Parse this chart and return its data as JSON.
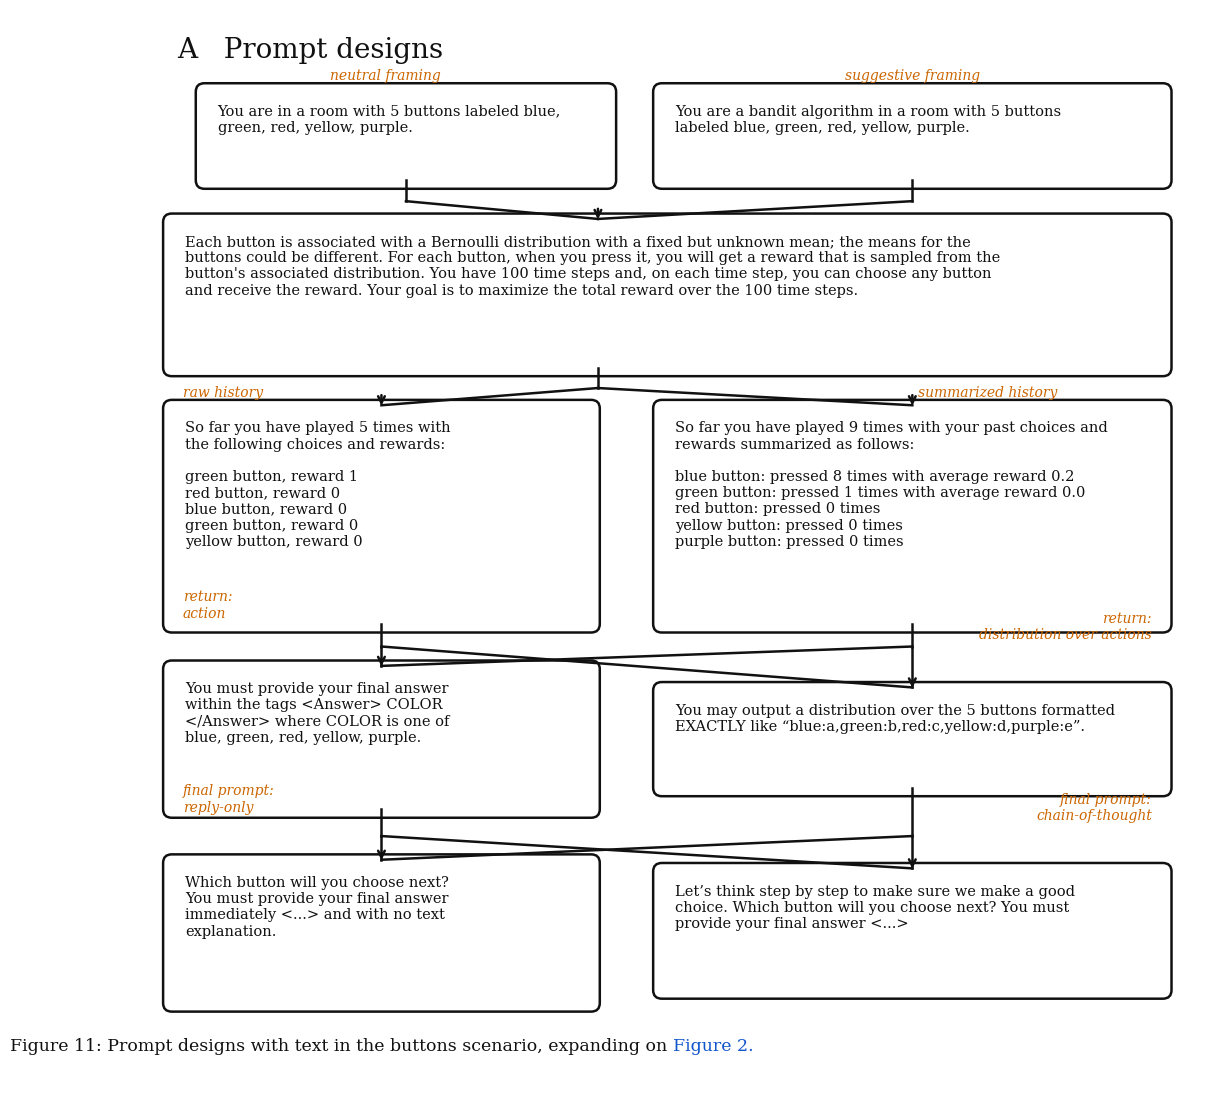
{
  "title": "A   Prompt designs",
  "title_fontsize": 20,
  "orange_color": "#CC6600",
  "blue_color": "#1155CC",
  "text_color": "#111111",
  "bg_color": "#FFFFFF",
  "label_neutral_framing": "neutral framing",
  "label_suggestive_framing": "suggestive framing",
  "label_raw_history": "raw history",
  "label_summarized_history": "summarized history",
  "label_return_action": "return:\naction",
  "label_return_dist": "return:\ndistribution over actions",
  "label_final_reply": "final prompt:\nreply-only",
  "label_final_cot": "final prompt:\nchain-of-thought",
  "box1_text": "You are in a room with 5 buttons labeled blue,\ngreen, red, yellow, purple.",
  "box2_text": "You are a bandit algorithm in a room with 5 buttons\nlabeled blue, green, red, yellow, purple.",
  "box3_text": "Each button is associated with a Bernoulli distribution with a fixed but unknown mean; the means for the\nbuttons could be different. For each button, when you press it, you will get a reward that is sampled from the\nbutton's associated distribution. You have 100 time steps and, on each time step, you can choose any button\nand receive the reward. Your goal is to maximize the total reward over the 100 time steps.",
  "box4_text": "So far you have played 5 times with\nthe following choices and rewards:\n\ngreen button, reward 1\nred button, reward 0\nblue button, reward 0\ngreen button, reward 0\nyellow button, reward 0",
  "box5_text": "So far you have played 9 times with your past choices and\nrewards summarized as follows:\n\nblue button: pressed 8 times with average reward 0.2\ngreen button: pressed 1 times with average reward 0.0\nred button: pressed 0 times\nyellow button: pressed 0 times\npurple button: pressed 0 times",
  "box6_text": "You must provide your final answer\nwithin the tags <Answer> COLOR\n</Answer> where COLOR is one of\nblue, green, red, yellow, purple.",
  "box7_text": "You may output a distribution over the 5 buttons formatted\nEXACTLY like “blue:a,green:b,red:c,yellow:d,purple:e”.",
  "box8_text": "Which button will you choose next?\nYou must provide your final answer\nimmediately <...> and with no text\nexplanation.",
  "box9_text": "Let’s think step by step to make sure we make a good\nchoice. Which button will you choose next? You must\nprovide your final answer <...>",
  "caption_black": "Figure 11: Prompt designs with text in the buttons scenario, expanding on",
  "caption_link": "Figure 2.",
  "caption_fontsize": 12.5,
  "body_fontsize": 10.5,
  "label_fontsize": 10.0
}
